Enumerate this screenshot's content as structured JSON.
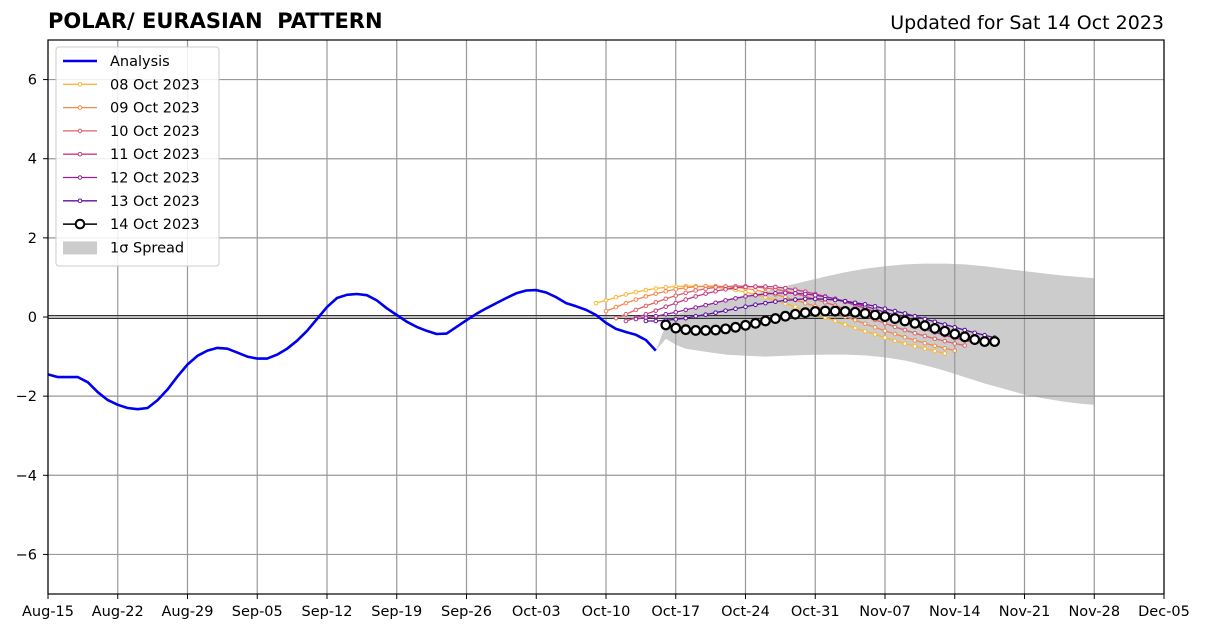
{
  "chart_data": {
    "type": "line",
    "title": "POLAR/ EURASIAN  PATTERN",
    "subtitle": "Updated for Sat 14 Oct 2023",
    "xlabel": "",
    "ylabel": "",
    "x_tick_labels": [
      "Aug-15",
      "Aug-22",
      "Aug-29",
      "Sep-05",
      "Sep-12",
      "Sep-19",
      "Sep-26",
      "Oct-03",
      "Oct-10",
      "Oct-17",
      "Oct-24",
      "Oct-31",
      "Nov-07",
      "Nov-14",
      "Nov-21",
      "Nov-28",
      "Dec-05"
    ],
    "x_range_days": [
      0,
      112
    ],
    "x_note": "x values are days after Aug 15 2023",
    "y_ticks": [
      -6,
      -4,
      -2,
      0,
      2,
      4,
      6
    ],
    "ylim": [
      -7,
      7
    ],
    "grid": true,
    "legend_position": "upper-left",
    "analysis": {
      "name": "Analysis",
      "color": "#0000ee",
      "points": [
        [
          0,
          -1.45
        ],
        [
          1,
          -1.52
        ],
        [
          2,
          -1.52
        ],
        [
          3,
          -1.52
        ],
        [
          4,
          -1.65
        ],
        [
          5,
          -1.9
        ],
        [
          6,
          -2.1
        ],
        [
          7,
          -2.22
        ],
        [
          8,
          -2.3
        ],
        [
          9,
          -2.33
        ],
        [
          10,
          -2.3
        ],
        [
          11,
          -2.1
        ],
        [
          12,
          -1.83
        ],
        [
          13,
          -1.5
        ],
        [
          14,
          -1.2
        ],
        [
          15,
          -0.98
        ],
        [
          16,
          -0.85
        ],
        [
          17,
          -0.78
        ],
        [
          18,
          -0.8
        ],
        [
          19,
          -0.9
        ],
        [
          20,
          -1.0
        ],
        [
          21,
          -1.05
        ],
        [
          22,
          -1.05
        ],
        [
          23,
          -0.95
        ],
        [
          24,
          -0.8
        ],
        [
          25,
          -0.6
        ],
        [
          26,
          -0.35
        ],
        [
          27,
          -0.05
        ],
        [
          28,
          0.25
        ],
        [
          29,
          0.48
        ],
        [
          30,
          0.56
        ],
        [
          31,
          0.58
        ],
        [
          32,
          0.55
        ],
        [
          33,
          0.42
        ],
        [
          34,
          0.22
        ],
        [
          35,
          0.05
        ],
        [
          36,
          -0.12
        ],
        [
          37,
          -0.25
        ],
        [
          38,
          -0.35
        ],
        [
          39,
          -0.43
        ],
        [
          40,
          -0.42
        ],
        [
          41,
          -0.25
        ],
        [
          42,
          -0.08
        ],
        [
          43,
          0.08
        ],
        [
          44,
          0.22
        ],
        [
          45,
          0.35
        ],
        [
          46,
          0.48
        ],
        [
          47,
          0.6
        ],
        [
          48,
          0.67
        ],
        [
          49,
          0.68
        ],
        [
          50,
          0.62
        ],
        [
          51,
          0.5
        ],
        [
          52,
          0.35
        ],
        [
          53,
          0.27
        ],
        [
          54,
          0.18
        ],
        [
          55,
          0.05
        ],
        [
          56,
          -0.15
        ],
        [
          57,
          -0.3
        ],
        [
          58,
          -0.38
        ],
        [
          59,
          -0.45
        ],
        [
          60,
          -0.58
        ],
        [
          61,
          -0.85
        ]
      ]
    },
    "forecasts": [
      {
        "name": "08 Oct 2023",
        "color": "#f9b735",
        "start": 55,
        "values": [
          0.35,
          0.42,
          0.5,
          0.57,
          0.63,
          0.68,
          0.72,
          0.75,
          0.77,
          0.78,
          0.78,
          0.77,
          0.75,
          0.72,
          0.68,
          0.63,
          0.57,
          0.5,
          0.42,
          0.34,
          0.26,
          0.17,
          0.08,
          -0.01,
          -0.1,
          -0.19,
          -0.28,
          -0.36,
          -0.44,
          -0.52,
          -0.6,
          -0.67,
          -0.74,
          -0.8,
          -0.86,
          -0.92
        ]
      },
      {
        "name": "09 Oct 2023",
        "color": "#f5894a",
        "start": 56,
        "values": [
          0.15,
          0.25,
          0.35,
          0.44,
          0.52,
          0.59,
          0.65,
          0.7,
          0.74,
          0.76,
          0.78,
          0.78,
          0.77,
          0.75,
          0.72,
          0.68,
          0.63,
          0.57,
          0.5,
          0.43,
          0.35,
          0.27,
          0.19,
          0.1,
          0.01,
          -0.08,
          -0.17,
          -0.26,
          -0.35,
          -0.43,
          -0.51,
          -0.59,
          -0.66,
          -0.73,
          -0.79,
          -0.85
        ]
      },
      {
        "name": "10 Oct 2023",
        "color": "#e06265",
        "start": 57,
        "values": [
          -0.03,
          0.07,
          0.18,
          0.28,
          0.37,
          0.46,
          0.54,
          0.61,
          0.67,
          0.71,
          0.75,
          0.77,
          0.78,
          0.78,
          0.76,
          0.73,
          0.7,
          0.65,
          0.59,
          0.52,
          0.45,
          0.37,
          0.29,
          0.2,
          0.11,
          0.02,
          -0.07,
          -0.16,
          -0.25,
          -0.33,
          -0.41,
          -0.48,
          -0.55,
          -0.61,
          -0.67,
          -0.72
        ]
      },
      {
        "name": "11 Oct 2023",
        "color": "#c33e81",
        "start": 58,
        "values": [
          -0.1,
          -0.02,
          0.07,
          0.16,
          0.26,
          0.35,
          0.44,
          0.52,
          0.59,
          0.65,
          0.7,
          0.74,
          0.76,
          0.77,
          0.77,
          0.76,
          0.73,
          0.69,
          0.64,
          0.58,
          0.52,
          0.45,
          0.38,
          0.3,
          0.22,
          0.13,
          0.04,
          -0.05,
          -0.14,
          -0.22,
          -0.31,
          -0.39,
          -0.46,
          -0.53,
          -0.59,
          -0.65
        ]
      },
      {
        "name": "12 Oct 2023",
        "color": "#951fa0",
        "start": 59,
        "values": [
          -0.05,
          -0.02,
          0.02,
          0.07,
          0.12,
          0.18,
          0.24,
          0.3,
          0.36,
          0.42,
          0.47,
          0.52,
          0.55,
          0.58,
          0.6,
          0.61,
          0.6,
          0.58,
          0.55,
          0.51,
          0.46,
          0.4,
          0.34,
          0.27,
          0.2,
          0.12,
          0.05,
          -0.03,
          -0.11,
          -0.19,
          -0.27,
          -0.35,
          -0.42,
          -0.49,
          -0.55,
          -0.61
        ]
      },
      {
        "name": "13 Oct 2023",
        "color": "#5c0e9e",
        "start": 60,
        "values": [
          -0.1,
          -0.1,
          -0.08,
          -0.06,
          -0.03,
          0.02,
          0.06,
          0.11,
          0.16,
          0.21,
          0.26,
          0.31,
          0.35,
          0.39,
          0.42,
          0.44,
          0.46,
          0.46,
          0.45,
          0.43,
          0.4,
          0.36,
          0.32,
          0.27,
          0.21,
          0.15,
          0.09,
          0.02,
          -0.05,
          -0.12,
          -0.19,
          -0.26,
          -0.33,
          -0.4,
          -0.46,
          -0.52
        ]
      },
      {
        "name": "14 Oct 2023",
        "color": "#000000",
        "start": 62,
        "values": [
          -0.2,
          -0.28,
          -0.32,
          -0.34,
          -0.34,
          -0.33,
          -0.3,
          -0.26,
          -0.21,
          -0.16,
          -0.1,
          -0.04,
          0.02,
          0.07,
          0.11,
          0.14,
          0.15,
          0.15,
          0.14,
          0.12,
          0.09,
          0.05,
          0.01,
          -0.04,
          -0.1,
          -0.16,
          -0.22,
          -0.29,
          -0.36,
          -0.43,
          -0.5,
          -0.57,
          -0.62,
          -0.62
        ]
      }
    ],
    "spread": {
      "name": "1σ Spread",
      "color": "#cccccc",
      "upper": [
        [
          61,
          -0.85
        ],
        [
          62,
          -0.2
        ],
        [
          63,
          0.05
        ],
        [
          64,
          0.15
        ],
        [
          66,
          0.3
        ],
        [
          68,
          0.45
        ],
        [
          70,
          0.55
        ],
        [
          72,
          0.65
        ],
        [
          74,
          0.78
        ],
        [
          76,
          0.9
        ],
        [
          78,
          1.02
        ],
        [
          80,
          1.13
        ],
        [
          82,
          1.22
        ],
        [
          84,
          1.28
        ],
        [
          86,
          1.33
        ],
        [
          88,
          1.35
        ],
        [
          90,
          1.35
        ],
        [
          92,
          1.33
        ],
        [
          94,
          1.28
        ],
        [
          96,
          1.22
        ],
        [
          98,
          1.16
        ],
        [
          100,
          1.1
        ],
        [
          102,
          1.04
        ],
        [
          104,
          1.0
        ],
        [
          105,
          0.98
        ]
      ],
      "lower": [
        [
          61,
          -0.85
        ],
        [
          62,
          -0.55
        ],
        [
          63,
          -0.7
        ],
        [
          64,
          -0.8
        ],
        [
          66,
          -0.88
        ],
        [
          68,
          -0.95
        ],
        [
          70,
          -0.98
        ],
        [
          72,
          -1.0
        ],
        [
          74,
          -0.98
        ],
        [
          76,
          -0.96
        ],
        [
          78,
          -0.95
        ],
        [
          80,
          -0.95
        ],
        [
          82,
          -0.97
        ],
        [
          84,
          -1.02
        ],
        [
          86,
          -1.1
        ],
        [
          88,
          -1.22
        ],
        [
          90,
          -1.36
        ],
        [
          92,
          -1.52
        ],
        [
          94,
          -1.68
        ],
        [
          96,
          -1.82
        ],
        [
          98,
          -1.96
        ],
        [
          100,
          -2.06
        ],
        [
          102,
          -2.14
        ],
        [
          104,
          -2.2
        ],
        [
          105,
          -2.22
        ]
      ]
    }
  }
}
